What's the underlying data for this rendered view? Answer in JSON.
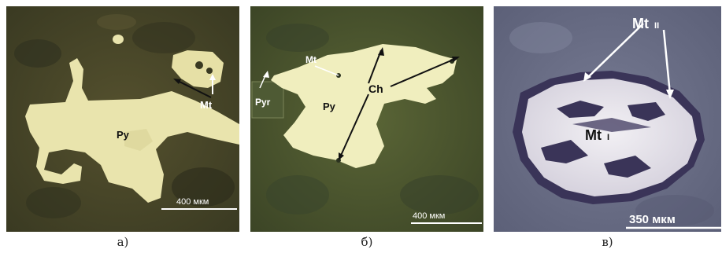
{
  "panels": [
    {
      "id": "a",
      "caption": "а)",
      "labels": {
        "mineral_1": "Py",
        "mineral_2": "Mt"
      },
      "scale_bar": "400 мкм",
      "colors": {
        "matrix": "#4a4a2a",
        "grain": "#e9e4ad"
      }
    },
    {
      "id": "b",
      "caption": "б)",
      "labels": {
        "mineral_1": "Py",
        "mineral_2": "Mt",
        "mineral_3": "Pyr",
        "mineral_4": "Ch"
      },
      "scale_bar": "400 мкм",
      "colors": {
        "matrix": "#505a30",
        "grain": "#f0eebe"
      }
    },
    {
      "id": "c",
      "caption": "в)",
      "labels": {
        "mineral_1": "Mt",
        "mineral_1_sub": "I",
        "mineral_2": "Mt",
        "mineral_2_sub": "II"
      },
      "scale_bar": "350 мкм",
      "colors": {
        "matrix": "#6c7088",
        "grain": "#e7e4ea",
        "inclusion": "#3a3458"
      }
    }
  ]
}
